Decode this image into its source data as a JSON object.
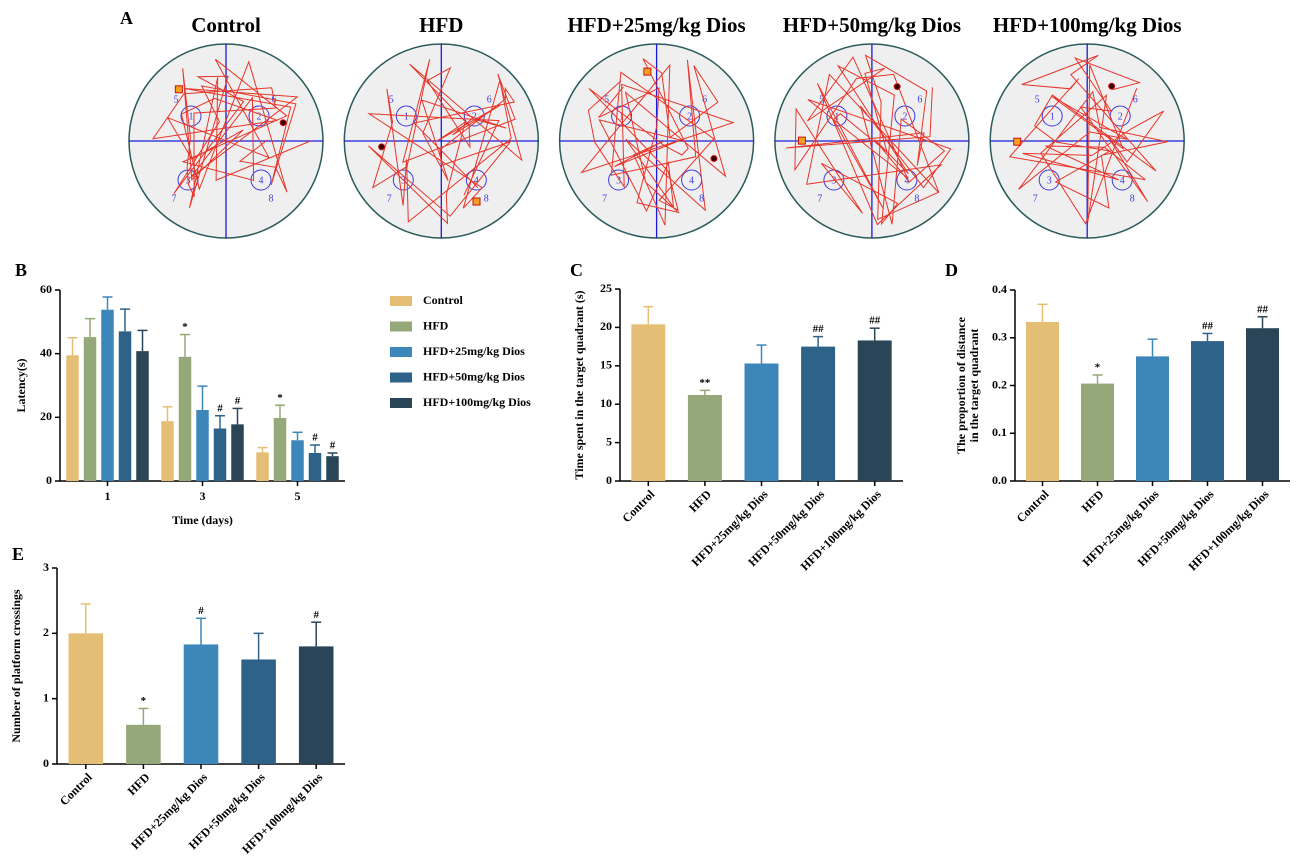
{
  "maze": {
    "label": "A",
    "titles": [
      "Control",
      "HFD",
      "HFD+25mg/kg Dios",
      "HFD+50mg/kg Dios",
      "HFD+100mg/kg Dios"
    ],
    "zone_labels": [
      "1",
      "2",
      "3",
      "4",
      "5",
      "6",
      "7",
      "8"
    ]
  },
  "chart_data": [
    {
      "type": "grouped_bar",
      "label": "B",
      "xlabel": "Time (days)",
      "ylabel": "Latency(s)",
      "categories": [
        "1",
        "3",
        "5"
      ],
      "ylim": [
        0,
        60
      ],
      "yticks": [
        0,
        20,
        40,
        60
      ],
      "series": [
        {
          "name": "Control",
          "color": "#E5BE76",
          "values": [
            39.5,
            18.8,
            9.0
          ],
          "errors": [
            5.5,
            4.5,
            1.5
          ],
          "annotations": [
            null,
            null,
            null
          ]
        },
        {
          "name": "HFD",
          "color": "#94A87A",
          "values": [
            45.2,
            39.0,
            19.8
          ],
          "errors": [
            5.8,
            7.0,
            4.0
          ],
          "annotations": [
            null,
            "*",
            "*"
          ]
        },
        {
          "name": "HFD+25mg/kg Dios",
          "color": "#3D86BA",
          "values": [
            53.8,
            22.3,
            12.8
          ],
          "errors": [
            4.0,
            7.5,
            2.5
          ],
          "annotations": [
            null,
            null,
            null
          ]
        },
        {
          "name": "HFD+50mg/kg Dios",
          "color": "#2F6288",
          "values": [
            47.0,
            16.5,
            8.8
          ],
          "errors": [
            7.0,
            4.0,
            2.5
          ],
          "annotations": [
            null,
            "#",
            "#"
          ]
        },
        {
          "name": "HFD+100mg/kg Dios",
          "color": "#2A4458",
          "values": [
            40.8,
            17.8,
            7.8
          ],
          "errors": [
            6.5,
            5.0,
            1.0
          ],
          "annotations": [
            null,
            "#",
            "#"
          ]
        }
      ]
    },
    {
      "type": "bar",
      "label": "C",
      "ylabel": [
        "Time spent in the target quadrant (s)"
      ],
      "categories": [
        "Control",
        "HFD",
        "HFD+25mg/kg Dios",
        "HFD+50mg/kg Dios",
        "HFD+100mg/kg Dios"
      ],
      "colors": [
        "#E5BE76",
        "#94A87A",
        "#3D86BA",
        "#2F6288",
        "#2A4458"
      ],
      "values": [
        20.4,
        11.2,
        15.3,
        17.5,
        18.3
      ],
      "errors": [
        2.3,
        0.6,
        2.4,
        1.3,
        1.6
      ],
      "annotations": [
        null,
        "**",
        null,
        "##",
        "##"
      ],
      "ylim": [
        0,
        25
      ],
      "yticks": [
        0,
        5,
        10,
        15,
        20,
        25
      ]
    },
    {
      "type": "bar",
      "label": "D",
      "ylabel": [
        "The proportion of distance",
        "in the target quadrant"
      ],
      "categories": [
        "Control",
        "HFD",
        "HFD+25mg/kg Dios",
        "HFD+50mg/kg Dios",
        "HFD+100mg/kg Dios"
      ],
      "colors": [
        "#E5BE76",
        "#94A87A",
        "#3D86BA",
        "#2F6288",
        "#2A4458"
      ],
      "values": [
        0.333,
        0.204,
        0.261,
        0.293,
        0.32
      ],
      "errors": [
        0.037,
        0.018,
        0.036,
        0.016,
        0.024
      ],
      "annotations": [
        null,
        "*",
        null,
        "##",
        "##"
      ],
      "ylim": [
        0,
        0.4
      ],
      "yticks": [
        {
          "value": 0,
          "label": "0.0"
        },
        0.1,
        0.2,
        0.3,
        0.4
      ]
    },
    {
      "type": "bar",
      "label": "E",
      "ylabel": [
        "Number of platform crossings"
      ],
      "categories": [
        "Control",
        "HFD",
        "HFD+25mg/kg Dios",
        "HFD+50mg/kg Dios",
        "HFD+100mg/kg Dios"
      ],
      "colors": [
        "#E5BE76",
        "#94A87A",
        "#3D86BA",
        "#2F6288",
        "#2A4458"
      ],
      "values": [
        2.0,
        0.6,
        1.83,
        1.6,
        1.8
      ],
      "errors": [
        0.45,
        0.25,
        0.4,
        0.4,
        0.37
      ],
      "annotations": [
        null,
        "*",
        "#",
        null,
        "#"
      ],
      "ylim": [
        0,
        3
      ],
      "yticks": [
        0,
        1,
        2,
        3
      ]
    }
  ]
}
